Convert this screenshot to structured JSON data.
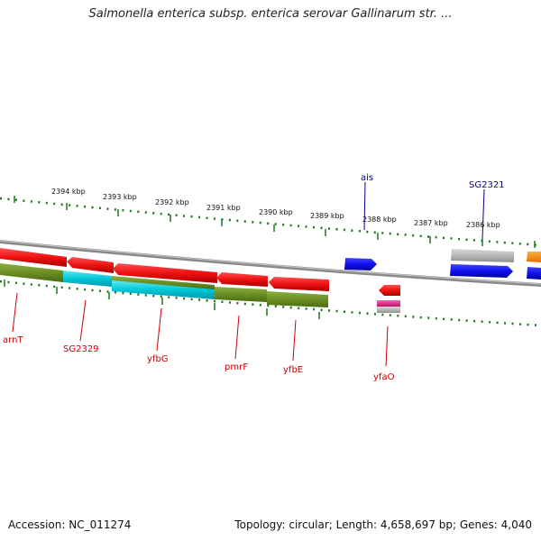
{
  "title": "Salmonella enterica subsp. enterica serovar Gallinarum str. ...",
  "footer": {
    "accession": "Accession: NC_011274",
    "summary": "Topology: circular; Length: 4,658,697 bp; Genes: 4,040"
  },
  "kbp_labels": [
    "2394 kbp",
    "2393 kbp",
    "2392 kbp",
    "2391 kbp",
    "2390 kbp",
    "2389 kbp",
    "2388 kbp",
    "2387 kbp",
    "2386 kbp"
  ],
  "forward_labels": [
    "ais",
    "SG2321"
  ],
  "reverse_labels": [
    "arnT",
    "SG2329",
    "yfbG",
    "pmrF",
    "yfbE",
    "yfaO"
  ],
  "colors": {
    "forward_gene": "#1111ee",
    "reverse_gene": "#ee1111",
    "green_feature": "#6b8e23",
    "cyan_feature": "#00c8d8",
    "gray_feature": "#b0b0b0",
    "pink_feature": "#e0208a",
    "orange_feature": "#ff8c00",
    "tick": "#1a7a1a",
    "backbone": "#808080"
  }
}
